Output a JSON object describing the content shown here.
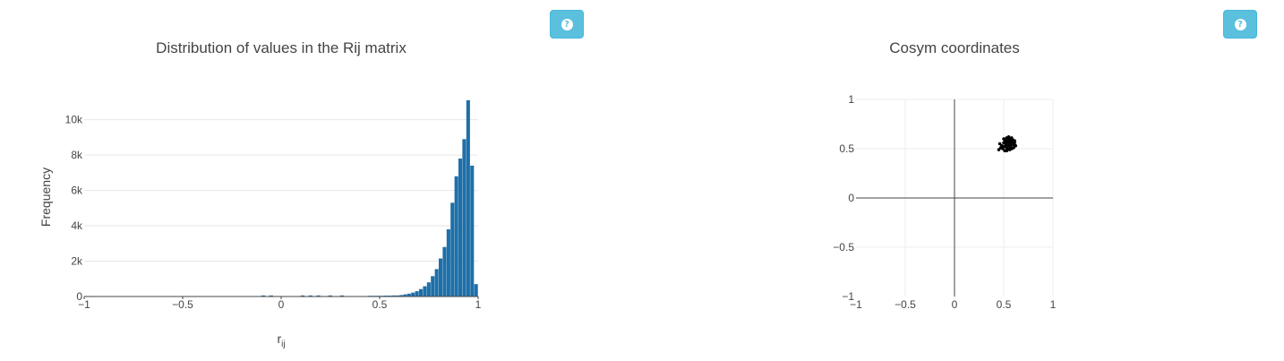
{
  "help_buttons": [
    {
      "icon": "question-circle-icon"
    },
    {
      "icon": "question-circle-icon"
    }
  ],
  "chart_data": [
    {
      "type": "bar",
      "title": "Distribution of values in the Rij matrix",
      "xlabel": "r",
      "xlabel_sub": "ij",
      "ylabel": "Frequency",
      "xlim": [
        -1,
        1
      ],
      "ylim": [
        0,
        11500
      ],
      "xticks": [
        "−1",
        "−0.5",
        "0",
        "0.5",
        "1"
      ],
      "xtick_values": [
        -1,
        -0.5,
        0,
        0.5,
        1
      ],
      "yticks": [
        "0",
        "2k",
        "4k",
        "6k",
        "8k",
        "10k"
      ],
      "ytick_values": [
        0,
        2000,
        4000,
        6000,
        8000,
        10000
      ],
      "bar_color": "#1f6fa8",
      "bin_width": 0.02,
      "bins": [
        [
          -0.08,
          60
        ],
        [
          -0.04,
          60
        ],
        [
          0.12,
          60
        ],
        [
          0.16,
          60
        ],
        [
          0.2,
          60
        ],
        [
          0.26,
          60
        ],
        [
          0.32,
          60
        ],
        [
          0.46,
          40
        ],
        [
          0.48,
          40
        ],
        [
          0.5,
          40
        ],
        [
          0.52,
          40
        ],
        [
          0.54,
          50
        ],
        [
          0.56,
          50
        ],
        [
          0.58,
          60
        ],
        [
          0.6,
          60
        ],
        [
          0.62,
          80
        ],
        [
          0.64,
          120
        ],
        [
          0.66,
          160
        ],
        [
          0.68,
          220
        ],
        [
          0.7,
          300
        ],
        [
          0.72,
          420
        ],
        [
          0.74,
          580
        ],
        [
          0.76,
          800
        ],
        [
          0.78,
          1150
        ],
        [
          0.8,
          1550
        ],
        [
          0.82,
          2150
        ],
        [
          0.84,
          2800
        ],
        [
          0.86,
          3800
        ],
        [
          0.88,
          5300
        ],
        [
          0.9,
          6800
        ],
        [
          0.92,
          7800
        ],
        [
          0.94,
          8900
        ],
        [
          0.96,
          11100
        ],
        [
          0.98,
          7400
        ],
        [
          1.0,
          700
        ]
      ]
    },
    {
      "type": "scatter",
      "title": "Cosym coordinates",
      "xlim": [
        -1,
        1
      ],
      "ylim": [
        -1,
        1
      ],
      "xticks": [
        "−1",
        "−0.5",
        "0",
        "0.5",
        "1"
      ],
      "xtick_values": [
        -1,
        -0.5,
        0,
        0.5,
        1
      ],
      "yticks": [
        "−1",
        "−0.5",
        "0",
        "0.5",
        "1"
      ],
      "ytick_values": [
        -1,
        -0.5,
        0,
        0.5,
        1
      ],
      "marker_color": "#000000",
      "points": [
        [
          0.5,
          0.52
        ],
        [
          0.52,
          0.55
        ],
        [
          0.54,
          0.58
        ],
        [
          0.56,
          0.6
        ],
        [
          0.58,
          0.57
        ],
        [
          0.6,
          0.54
        ],
        [
          0.55,
          0.5
        ],
        [
          0.51,
          0.48
        ],
        [
          0.53,
          0.61
        ],
        [
          0.57,
          0.52
        ],
        [
          0.59,
          0.59
        ],
        [
          0.61,
          0.56
        ],
        [
          0.52,
          0.57
        ],
        [
          0.56,
          0.55
        ],
        [
          0.54,
          0.53
        ],
        [
          0.58,
          0.5
        ],
        [
          0.5,
          0.56
        ],
        [
          0.55,
          0.59
        ],
        [
          0.62,
          0.53
        ],
        [
          0.49,
          0.5
        ],
        [
          0.47,
          0.51
        ],
        [
          0.45,
          0.49
        ],
        [
          0.46,
          0.55
        ],
        [
          0.53,
          0.51
        ],
        [
          0.57,
          0.58
        ],
        [
          0.6,
          0.51
        ],
        [
          0.51,
          0.59
        ],
        [
          0.54,
          0.56
        ],
        [
          0.56,
          0.49
        ],
        [
          0.59,
          0.55
        ],
        [
          0.52,
          0.53
        ],
        [
          0.55,
          0.62
        ],
        [
          0.58,
          0.61
        ],
        [
          0.48,
          0.53
        ],
        [
          0.61,
          0.58
        ],
        [
          0.53,
          0.48
        ],
        [
          0.57,
          0.54
        ],
        [
          0.5,
          0.6
        ],
        [
          0.56,
          0.57
        ],
        [
          0.54,
          0.5
        ]
      ]
    }
  ]
}
